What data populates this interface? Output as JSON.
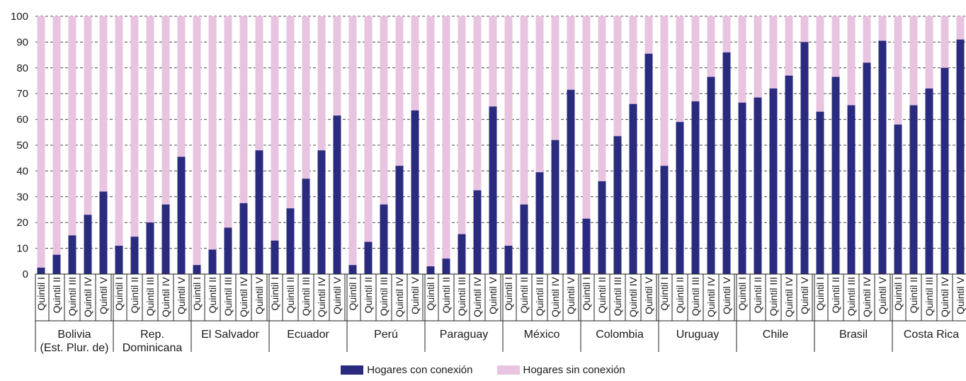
{
  "chart_data": {
    "type": "bar",
    "stacked": true,
    "title": "",
    "xlabel": "",
    "ylabel": "",
    "ylim": [
      0,
      100
    ],
    "yticks": [
      0,
      10,
      20,
      30,
      40,
      50,
      60,
      70,
      80,
      90,
      100
    ],
    "quintiles": [
      "Quintil I",
      "Quintil II",
      "Quintil III",
      "Quintil IV",
      "Quintil V"
    ],
    "groups": [
      {
        "label": [
          "Bolivia",
          "(Est. Plur. de)"
        ],
        "values": [
          2.5,
          7.5,
          15,
          23,
          32
        ]
      },
      {
        "label": [
          "Rep.",
          "Dominicana"
        ],
        "values": [
          11,
          14.5,
          20,
          27,
          45.5
        ]
      },
      {
        "label": [
          "El Salvador"
        ],
        "values": [
          3.5,
          9.5,
          18,
          27.5,
          48
        ]
      },
      {
        "label": [
          "Ecuador"
        ],
        "values": [
          13,
          25.5,
          37,
          48,
          61.5
        ]
      },
      {
        "label": [
          "Perú"
        ],
        "values": [
          3.5,
          12.5,
          27,
          42,
          63.5
        ]
      },
      {
        "label": [
          "Paraguay"
        ],
        "values": [
          3,
          6,
          15.5,
          32.5,
          65
        ]
      },
      {
        "label": [
          "México"
        ],
        "values": [
          11,
          27,
          39.5,
          52,
          71.5
        ]
      },
      {
        "label": [
          "Colombia"
        ],
        "values": [
          21.5,
          36,
          53.5,
          66,
          85.5
        ]
      },
      {
        "label": [
          "Uruguay"
        ],
        "values": [
          42,
          59,
          67,
          76.5,
          86
        ]
      },
      {
        "label": [
          "Chile"
        ],
        "values": [
          66.5,
          68.5,
          72,
          77,
          90
        ]
      },
      {
        "label": [
          "Brasil"
        ],
        "values": [
          63,
          76.5,
          65.5,
          82,
          90.5
        ]
      },
      {
        "label": [
          "Costa Rica"
        ],
        "values": [
          58,
          65.5,
          72,
          80,
          91
        ]
      }
    ],
    "series": [
      {
        "name": "Hogares con conexión",
        "color": "#2a2b7f"
      },
      {
        "name": "Hogares sin conexión",
        "color": "#e8c4e1"
      }
    ],
    "grid": true,
    "legend_position": "bottom"
  }
}
